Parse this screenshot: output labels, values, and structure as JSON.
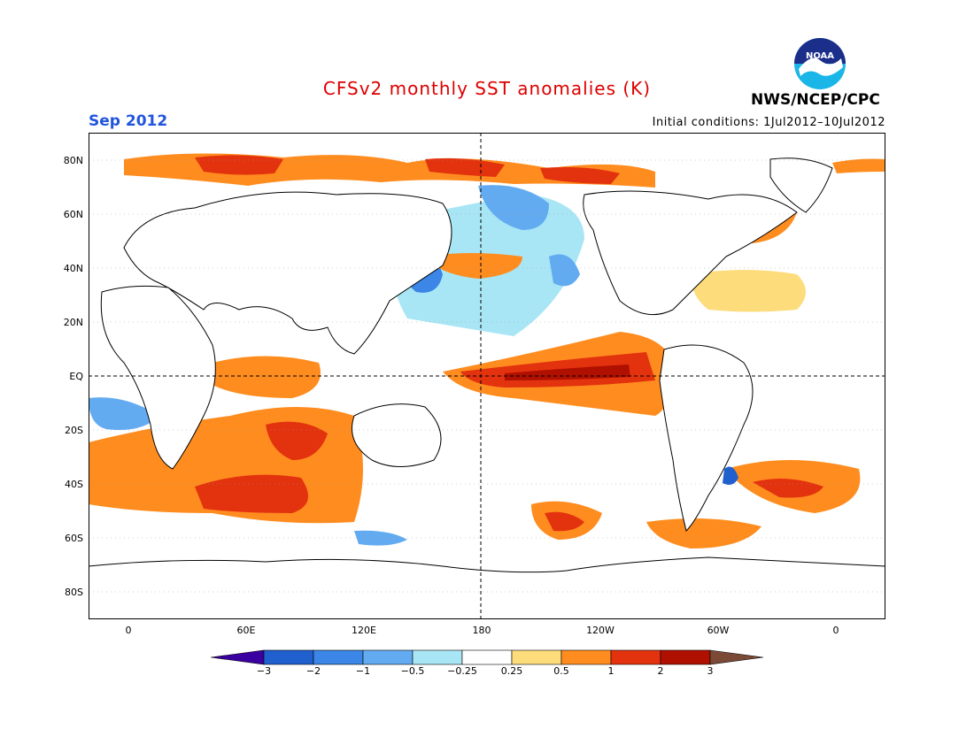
{
  "header": {
    "title": "CFSv2 monthly SST anomalies (K)",
    "month": "Sep 2012",
    "initial_conditions": "Initial conditions: 1Jul2012–10Jul2012",
    "agency": "NWS/NCEP/CPC",
    "logo_text": "NOAA"
  },
  "colors": {
    "title": "#dd0000",
    "month": "#2255dd",
    "frame": "#000000",
    "land": "#ffffff",
    "ocean_neutral": "#ffffff"
  },
  "axes": {
    "lat_labels": [
      "80N",
      "60N",
      "40N",
      "20N",
      "EQ",
      "20S",
      "40S",
      "60S",
      "80S"
    ],
    "lon_labels": [
      "0",
      "60E",
      "120E",
      "180",
      "120W",
      "60W",
      "0"
    ]
  },
  "colorbar": {
    "ticks": [
      "−3",
      "−2",
      "−1",
      "−0.5",
      "−0.25",
      "0.25",
      "0.5",
      "1",
      "2",
      "3"
    ],
    "colors": [
      "#3a00a0",
      "#1f5fce",
      "#3b86e6",
      "#63abf0",
      "#a8e6f5",
      "#ffffff",
      "#fddc7c",
      "#ff8c1e",
      "#e3320e",
      "#b01000",
      "#7a4a36"
    ]
  },
  "anomaly_regions": [
    {
      "level": "1",
      "desc": "equatorial pacific tongue"
    },
    {
      "level": "2",
      "desc": "equatorial pacific core"
    },
    {
      "level": "1",
      "desc": "arctic margin"
    },
    {
      "level": "2",
      "desc": "arctic core"
    },
    {
      "level": "1",
      "desc": "southern indian ocean"
    },
    {
      "level": "2",
      "desc": "southern indian ocean core"
    },
    {
      "level": "-0.5",
      "desc": "north pacific"
    },
    {
      "level": "-1",
      "desc": "north pacific core"
    },
    {
      "level": "-0.25",
      "desc": "tropical north pacific"
    },
    {
      "level": "0.5",
      "desc": "north atlantic"
    },
    {
      "level": "1",
      "desc": "south atlantic"
    },
    {
      "level": "1",
      "desc": "south pacific"
    }
  ]
}
